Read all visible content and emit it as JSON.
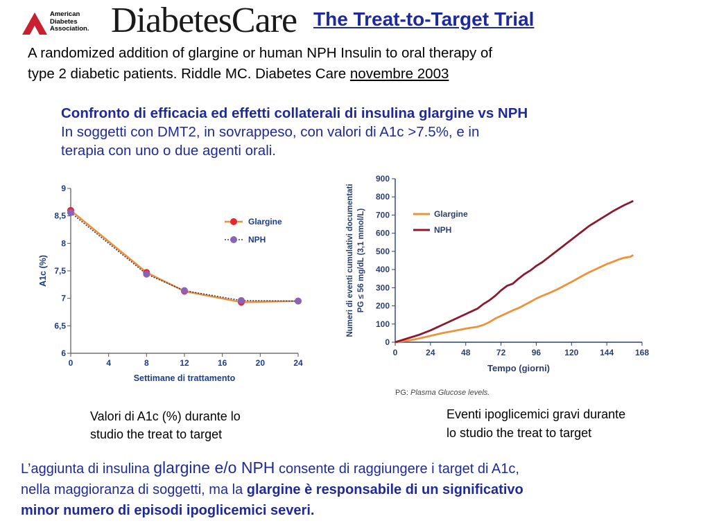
{
  "header": {
    "ada_logo_lines": [
      "American",
      "Diabetes",
      "Association."
    ],
    "journal_logo": "DiabetesCare",
    "title": "The Treat-to-Target Trial"
  },
  "subtitle": {
    "line1": "A randomized addition of glargine or human NPH  Insulin to oral therapy of",
    "line2_pre": "type 2 diabetic patients.   Riddle MC. Diabetes Care ",
    "line2_underlined": "novembre 2003"
  },
  "comparison": {
    "heading": "Confronto di efficacia ed effetti collaterali di insulina glargine vs NPH",
    "line1": "In soggetti con DMT2, in sovrappeso, con valori di A1c >7.5%, e in",
    "line2": "terapia con uno o due agenti orali."
  },
  "colors": {
    "title_blue": "#1f2a9a",
    "axis_blue": "#1a3d8f",
    "glargine_line": "#f0913a",
    "glargine_marker": "#e8262a",
    "npe_marker": "#8a63b8",
    "nph_dark": "#8b1a2e"
  },
  "chart_data": [
    {
      "type": "line",
      "xlabel": "Settimane di trattamento",
      "ylabel": "A1c (%)",
      "xlim": [
        0,
        24
      ],
      "ylim": [
        6,
        9
      ],
      "x_ticks": [
        "0",
        "4",
        "8",
        "12",
        "16",
        "20",
        "24"
      ],
      "y_ticks": [
        "6",
        "6,5",
        "7",
        "7,5",
        "8",
        "8,5",
        "9"
      ],
      "legend_position": "top-right",
      "series": [
        {
          "name": "Glargine",
          "x": [
            0,
            8,
            12,
            18,
            24
          ],
          "values": [
            8.6,
            7.47,
            7.13,
            6.93,
            6.95
          ]
        },
        {
          "name": "NPH",
          "x": [
            0,
            8,
            12,
            18,
            24
          ],
          "values": [
            8.56,
            7.44,
            7.14,
            6.96,
            6.95
          ]
        }
      ]
    },
    {
      "type": "line",
      "xlabel": "Tempo (giorni)",
      "ylabel_lines": [
        "Numeri di eventi cumulativi documentati",
        "PG ≤ 56 mg/dL (3,1 mmol/L)"
      ],
      "xlim": [
        0,
        168
      ],
      "ylim": [
        0,
        900
      ],
      "x_ticks": [
        "0",
        "24",
        "48",
        "72",
        "96",
        "120",
        "144",
        "168"
      ],
      "y_ticks": [
        "0",
        "100",
        "200",
        "300",
        "400",
        "500",
        "600",
        "700",
        "800",
        "900"
      ],
      "legend_position": "top-left",
      "footnote_pre": "PG: ",
      "footnote_italic": "Plasma Glucose levels.",
      "series": [
        {
          "name": "Glargine",
          "x": [
            0,
            8,
            16,
            24,
            32,
            40,
            48,
            52,
            56,
            60,
            64,
            68,
            72,
            76,
            80,
            84,
            88,
            92,
            96,
            100,
            104,
            108,
            112,
            116,
            120,
            124,
            128,
            132,
            136,
            140,
            144,
            148,
            152,
            156,
            160,
            162
          ],
          "values": [
            0,
            8,
            20,
            35,
            50,
            62,
            75,
            80,
            85,
            95,
            110,
            130,
            145,
            160,
            175,
            188,
            205,
            222,
            240,
            255,
            268,
            282,
            298,
            315,
            332,
            350,
            368,
            385,
            400,
            415,
            430,
            442,
            455,
            465,
            470,
            480
          ]
        },
        {
          "name": "NPH",
          "x": [
            0,
            8,
            16,
            24,
            32,
            40,
            48,
            52,
            56,
            60,
            64,
            68,
            72,
            76,
            80,
            84,
            88,
            92,
            96,
            100,
            104,
            108,
            112,
            116,
            120,
            124,
            128,
            132,
            136,
            140,
            144,
            148,
            152,
            156,
            160,
            162
          ],
          "values": [
            0,
            20,
            40,
            65,
            95,
            125,
            155,
            170,
            185,
            210,
            230,
            255,
            285,
            310,
            322,
            350,
            375,
            395,
            420,
            440,
            465,
            490,
            515,
            540,
            565,
            590,
            615,
            640,
            660,
            680,
            700,
            720,
            738,
            755,
            770,
            778
          ]
        }
      ]
    }
  ],
  "captions": {
    "a1c": [
      "Valori di A1c (%) durante lo",
      "studio the treat to target"
    ],
    "hypo": [
      "Eventi  ipoglicemici gravi durante",
      "lo studio the treat to target"
    ]
  },
  "conclusion": {
    "p1": "L’aggiunta di insulina ",
    "p2_big": "glargine e/o NPH",
    "p3": " consente di raggiungere i target di A1c,",
    "p4": "nella maggioranza di soggetti, ma la ",
    "p5_bold": "glargine è responsabile di un significativo",
    "p6_bold": "minor numero di episodi ipoglicemici severi."
  }
}
